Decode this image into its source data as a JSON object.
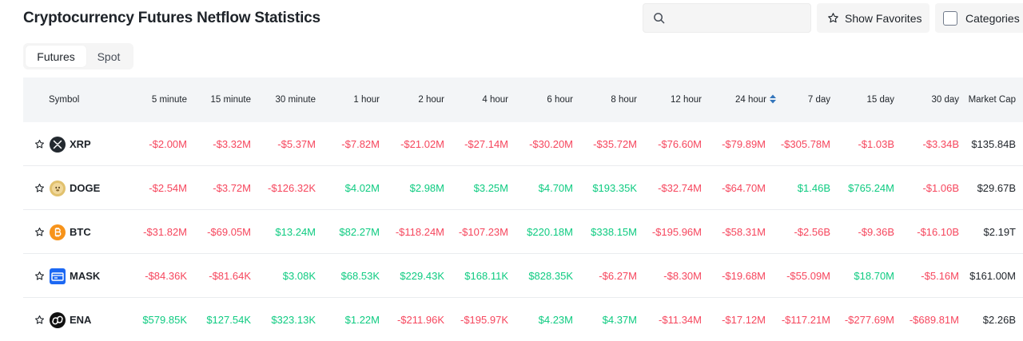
{
  "title": "Cryptocurrency Futures Netflow Statistics",
  "search": {
    "placeholder": "",
    "value": ""
  },
  "favorites_label": "Show Favorites",
  "categories_label": "Categories",
  "tabs": [
    {
      "label": "Futures",
      "active": true
    },
    {
      "label": "Spot",
      "active": false
    }
  ],
  "colors": {
    "negative": "#f6465d",
    "positive": "#0ecb81",
    "sort_active": "#3375bb"
  },
  "columns": [
    "Symbol",
    "5 minute",
    "15 minute",
    "30 minute",
    "1 hour",
    "2 hour",
    "4 hour",
    "6 hour",
    "8 hour",
    "12 hour",
    "24 hour",
    "7 day",
    "15 day",
    "30 day",
    "Market Cap"
  ],
  "sorted_column": "24 hour",
  "rows": [
    {
      "symbol": "XRP",
      "icon": "xrp-icon",
      "values": [
        "-$2.00M",
        "-$3.32M",
        "-$5.37M",
        "-$7.82M",
        "-$21.02M",
        "-$27.14M",
        "-$30.20M",
        "-$35.72M",
        "-$76.60M",
        "-$79.89M",
        "-$305.78M",
        "-$1.03B",
        "-$3.34B"
      ],
      "market_cap": "$135.84B"
    },
    {
      "symbol": "DOGE",
      "icon": "doge-icon",
      "values": [
        "-$2.54M",
        "-$3.72M",
        "-$126.32K",
        "$4.02M",
        "$2.98M",
        "$3.25M",
        "$4.70M",
        "$193.35K",
        "-$32.74M",
        "-$64.70M",
        "$1.46B",
        "$765.24M",
        "-$1.06B"
      ],
      "market_cap": "$29.67B"
    },
    {
      "symbol": "BTC",
      "icon": "btc-icon",
      "values": [
        "-$31.82M",
        "-$69.05M",
        "$13.24M",
        "$82.27M",
        "-$118.24M",
        "-$107.23M",
        "$220.18M",
        "$338.15M",
        "-$195.96M",
        "-$58.31M",
        "-$2.56B",
        "-$9.36B",
        "-$16.10B"
      ],
      "market_cap": "$2.19T"
    },
    {
      "symbol": "MASK",
      "icon": "mask-icon",
      "values": [
        "-$84.36K",
        "-$81.64K",
        "$3.08K",
        "$68.53K",
        "$229.43K",
        "$168.11K",
        "$828.35K",
        "-$6.27M",
        "-$8.30M",
        "-$19.68M",
        "-$55.09M",
        "$18.70M",
        "-$5.16M"
      ],
      "market_cap": "$161.00M"
    },
    {
      "symbol": "ENA",
      "icon": "ena-icon",
      "values": [
        "$579.85K",
        "$127.54K",
        "$323.13K",
        "$1.22M",
        "-$211.96K",
        "-$195.97K",
        "$4.23M",
        "$4.37M",
        "-$11.34M",
        "-$17.12M",
        "-$117.21M",
        "-$277.69M",
        "-$689.81M"
      ],
      "market_cap": "$2.26B"
    }
  ]
}
